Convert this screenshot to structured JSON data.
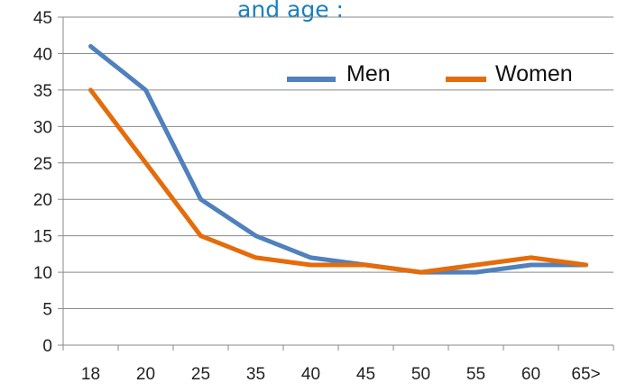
{
  "chart_data": {
    "type": "line",
    "title": "and age :",
    "xlabel": "",
    "ylabel": "",
    "categories": [
      "18",
      "20",
      "25",
      "35",
      "40",
      "45",
      "50",
      "55",
      "60",
      "65>"
    ],
    "series": [
      {
        "name": "Men",
        "color": "#4f81bd",
        "values": [
          41,
          35,
          20,
          15,
          12,
          11,
          10,
          10,
          11,
          11
        ]
      },
      {
        "name": "Women",
        "color": "#e46c0a",
        "values": [
          35,
          25,
          15,
          12,
          11,
          11,
          10,
          11,
          12,
          11
        ]
      }
    ],
    "ylim": [
      0,
      45
    ],
    "yticks": [
      "0",
      "5",
      "10",
      "15",
      "20",
      "25",
      "30",
      "35",
      "40",
      "45"
    ],
    "grid": true,
    "legend_position": "top-right"
  }
}
